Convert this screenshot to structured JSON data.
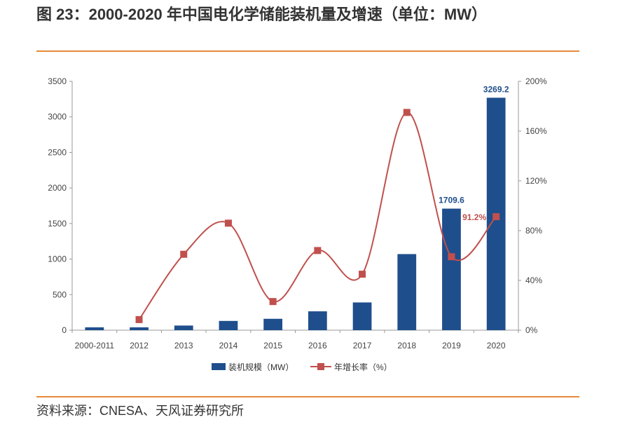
{
  "title": "图 23：2000-2020 年中国电化学储能装机量及增速（单位：MW）",
  "source": "资料来源：CNESA、天风证券研究所",
  "colors": {
    "bar": "#1f4e8c",
    "line": "#c0504d",
    "accent": "#e8893a"
  },
  "chart_data": {
    "type": "bar",
    "categories": [
      "2000-2011",
      "2012",
      "2013",
      "2014",
      "2015",
      "2016",
      "2017",
      "2018",
      "2019",
      "2020"
    ],
    "series": [
      {
        "name": "装机规模（MW）",
        "type": "bar",
        "axis": "left",
        "values": [
          40,
          40,
          65,
          130,
          160,
          265,
          390,
          1070,
          1709.6,
          3269.2
        ]
      },
      {
        "name": "年增长率（%）",
        "type": "line",
        "axis": "right",
        "values": [
          null,
          8.5,
          61,
          86,
          23,
          64,
          45,
          175,
          59,
          91.2
        ]
      }
    ],
    "data_labels": [
      {
        "category": "2019",
        "series": 0,
        "text": "1709.6"
      },
      {
        "category": "2020",
        "series": 0,
        "text": "3269.2"
      },
      {
        "category": "2020",
        "series": 1,
        "text": "91.2%"
      }
    ],
    "y_left": {
      "ylim": [
        0,
        3500
      ],
      "ticks": [
        "0",
        "500",
        "1000",
        "1500",
        "2000",
        "2500",
        "3000",
        "3500"
      ]
    },
    "y_right": {
      "ylim": [
        0,
        200
      ],
      "ticks": [
        "0%",
        "40%",
        "80%",
        "120%",
        "160%",
        "200%"
      ]
    },
    "legend": "bottom",
    "grid": false
  }
}
